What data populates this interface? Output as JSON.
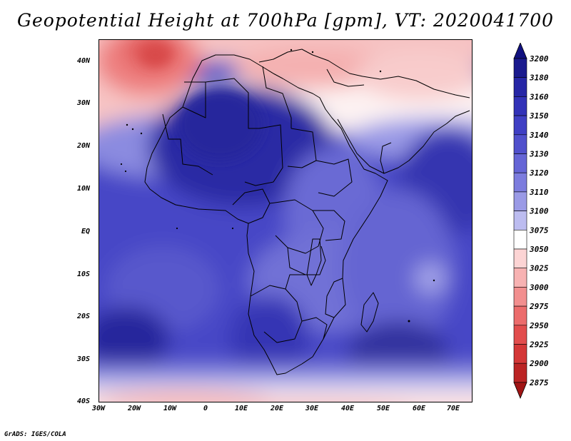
{
  "title": "Geopotential Height at 700hPa [gpm], VT: 2020041700",
  "credit": "GrADS: IGES/COLA",
  "lat_labels": [
    "40N",
    "30N",
    "20N",
    "10N",
    "EQ",
    "10S",
    "20S",
    "30S",
    "40S"
  ],
  "lon_labels": [
    "30W",
    "20W",
    "10W",
    "0",
    "10E",
    "20E",
    "30E",
    "40E",
    "50E",
    "60E",
    "70E"
  ],
  "map_extent": {
    "lon_min": -30,
    "lon_max": 75,
    "lat_min": -40,
    "lat_max": 45
  },
  "colorbar": {
    "labels": [
      "3200",
      "3180",
      "3160",
      "3150",
      "3140",
      "3130",
      "3120",
      "3110",
      "3100",
      "3075",
      "3050",
      "3025",
      "3000",
      "2975",
      "2950",
      "2925",
      "2900",
      "2875"
    ],
    "colors": [
      "#1a1a8e",
      "#2626a6",
      "#3232b8",
      "#3f3fc4",
      "#5050cc",
      "#6565d6",
      "#7c7cde",
      "#9a9ae6",
      "#bcbcf0",
      "#ffffff",
      "#fcd4d4",
      "#f7b2b2",
      "#f28f8f",
      "#ec6c6c",
      "#e24d4d",
      "#d43737",
      "#bb2424"
    ],
    "cap_top": "#111180",
    "cap_bottom": "#a01414"
  }
}
